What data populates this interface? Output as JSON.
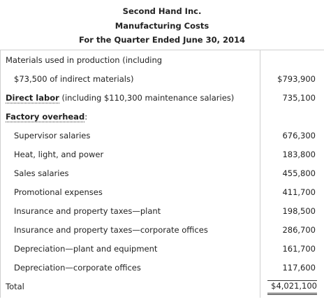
{
  "header": {
    "company": "Second Hand Inc.",
    "title": "Manufacturing Costs",
    "period": "For the Quarter Ended June 30, 2014"
  },
  "rows": {
    "materials_line1": "Materials used in production (including",
    "materials_line2": "$73,500 of indirect materials)",
    "materials_amount": "$793,900",
    "direct_labor_label": "Direct labor",
    "direct_labor_note": " (including $110,300 maintenance salaries)",
    "direct_labor_amount": "735,100",
    "overhead_label": "Factory overhead",
    "overhead_colon": ":",
    "items": [
      {
        "label": "Supervisor salaries",
        "amount": "676,300"
      },
      {
        "label": "Heat, light, and power",
        "amount": "183,800"
      },
      {
        "label": "Sales salaries",
        "amount": "455,800"
      },
      {
        "label": "Promotional expenses",
        "amount": "411,700"
      },
      {
        "label": "Insurance and property taxes—plant",
        "amount": "198,500"
      },
      {
        "label": "Insurance and property taxes—corporate offices",
        "amount": "286,700"
      },
      {
        "label": "Depreciation—plant and equipment",
        "amount": "161,700"
      },
      {
        "label": "Depreciation—corporate offices",
        "amount": "117,600"
      }
    ],
    "total_label": "Total",
    "total_amount": "$4,021,100"
  }
}
